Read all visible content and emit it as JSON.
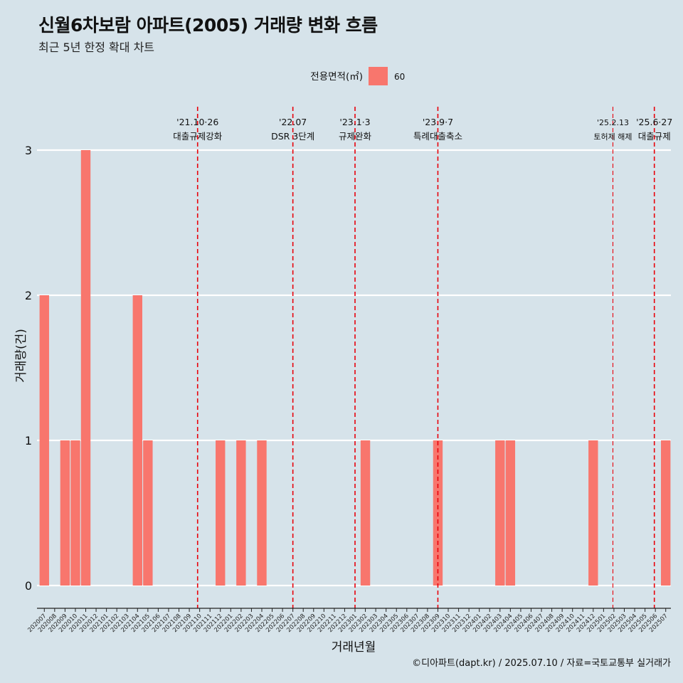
{
  "title": "신월6차보람 아파트(2005) 거래량 변화 흐름",
  "subtitle": "최근 5년 한정 확대 차트",
  "caption": "©디아파트(dapt.kr) / 2025.07.10 / 자료=국토교통부 실거래가",
  "colors": {
    "background": "#d6e3ea",
    "bar": "#f8766d",
    "event_line": "#e8000b",
    "grid": "#ffffff"
  },
  "chart_data": {
    "type": "bar",
    "xlabel": "거래년월",
    "ylabel": "거래량(건)",
    "ylim": [
      0,
      3
    ],
    "yticks": [
      0,
      1,
      2,
      3
    ],
    "legend": {
      "title": "전용면적(㎡)",
      "position": "top",
      "entries": [
        "60"
      ]
    },
    "categories": [
      "202007",
      "202008",
      "202009",
      "202010",
      "202011",
      "202012",
      "202101",
      "202102",
      "202103",
      "202104",
      "202105",
      "202106",
      "202107",
      "202108",
      "202109",
      "202110",
      "202111",
      "202112",
      "202201",
      "202202",
      "202203",
      "202204",
      "202205",
      "202206",
      "202207",
      "202208",
      "202209",
      "202210",
      "202211",
      "202212",
      "202301",
      "202302",
      "202303",
      "202304",
      "202305",
      "202306",
      "202307",
      "202308",
      "202309",
      "202310",
      "202311",
      "202312",
      "202401",
      "202402",
      "202403",
      "202404",
      "202405",
      "202406",
      "202407",
      "202408",
      "202409",
      "202410",
      "202411",
      "202412",
      "202501",
      "202502",
      "202503",
      "202504",
      "202505",
      "202506",
      "202507"
    ],
    "series": [
      {
        "name": "60",
        "values": [
          2,
          0,
          1,
          1,
          3,
          0,
          0,
          0,
          0,
          2,
          1,
          0,
          0,
          0,
          0,
          0,
          0,
          1,
          0,
          1,
          0,
          1,
          0,
          0,
          0,
          0,
          0,
          0,
          0,
          0,
          0,
          1,
          0,
          0,
          0,
          0,
          0,
          0,
          1,
          0,
          0,
          0,
          0,
          0,
          1,
          1,
          0,
          0,
          0,
          0,
          0,
          0,
          0,
          1,
          0,
          0,
          0,
          0,
          0,
          0,
          1
        ]
      }
    ],
    "events": [
      {
        "date": "202110",
        "offset": 0.3,
        "line1": "'21.10·26",
        "line2": "대출규제강화",
        "minor": false
      },
      {
        "date": "202207",
        "offset": 0.5,
        "line1": "'22.07",
        "line2": "DSR 3단계",
        "minor": false
      },
      {
        "date": "202301",
        "offset": 0.5,
        "line1": "'23.1·3",
        "line2": "규제완화",
        "minor": false
      },
      {
        "date": "202309",
        "offset": 0.5,
        "line1": "'23.9·7",
        "line2": "특례대출축소",
        "minor": false
      },
      {
        "date": "202502",
        "offset": 0.4,
        "line1": "'25.2.13",
        "line2": "토허제 해제",
        "minor": true
      },
      {
        "date": "202506",
        "offset": 0.4,
        "line1": "'25.6·27",
        "line2": "대출규제",
        "minor": false
      }
    ]
  }
}
